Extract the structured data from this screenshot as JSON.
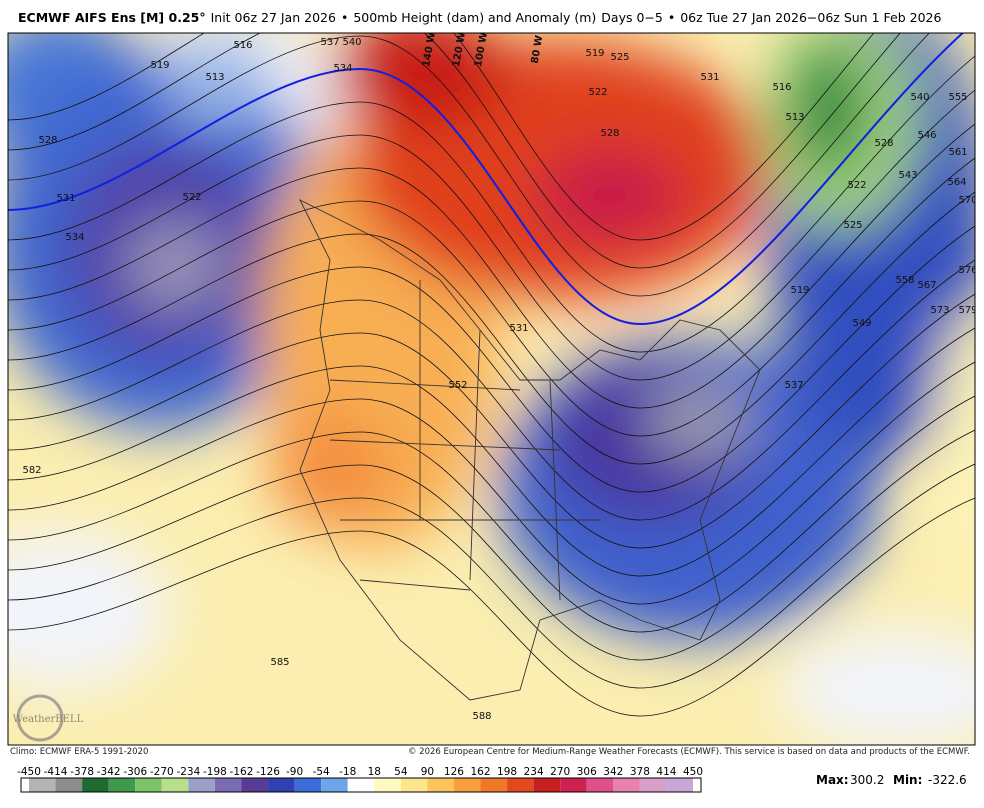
{
  "header": {
    "title": "ECMWF AIFS Ens [M] 0.25°",
    "init": "Init 06z 27 Jan 2026",
    "separator": "•",
    "product": "500mb Height (dam) and Anomaly (m)",
    "days": "Days 0−5",
    "valid": "06z Tue 27 Jan 2026−06z Sun 1 Feb 2026"
  },
  "map": {
    "contour_labels": [
      519,
      513,
      516,
      528,
      531,
      534,
      522,
      537,
      540,
      534,
      528,
      522,
      519,
      525,
      531,
      516,
      513,
      528,
      522,
      525,
      519,
      531,
      552,
      537,
      549,
      558,
      567,
      573,
      579,
      576,
      570,
      564,
      561,
      546,
      543,
      540,
      555,
      582,
      585,
      588
    ],
    "longitude_labels": [
      "140 W",
      "120 W",
      "100 W",
      "80 W"
    ],
    "logo": "WeatherBELL"
  },
  "footer": {
    "climo": "Climo: ECMWF ERA-5 1991-2020",
    "copyright": "© 2026 European Centre for Medium-Range Weather Forecasts (ECMWF). This service is based on data and products of the ECMWF."
  },
  "colorbar": {
    "ticks": [
      -450,
      -414,
      -378,
      -342,
      -306,
      -270,
      -234,
      -198,
      -162,
      -126,
      -90,
      -54,
      -18,
      18,
      54,
      90,
      126,
      162,
      198,
      234,
      270,
      306,
      342,
      378,
      414,
      450
    ],
    "colors": [
      "#b4b4b4",
      "#8c8c8c",
      "#1e6b32",
      "#3c9a4a",
      "#7cc46c",
      "#b8e08a",
      "#9aa0c8",
      "#7a6cb0",
      "#5a3c98",
      "#3040b0",
      "#3c6cd8",
      "#6ea4e8",
      "#ffffff",
      "#fffac0",
      "#fde58a",
      "#fbc45c",
      "#f8a040",
      "#f07828",
      "#e04a1c",
      "#c82020",
      "#d02050",
      "#e05088",
      "#e880b0",
      "#d8a0c8",
      "#c8a8d8"
    ]
  },
  "stats": {
    "max_label": "Max:",
    "max": 300.2,
    "min_label": "Min:",
    "min": -322.6
  }
}
